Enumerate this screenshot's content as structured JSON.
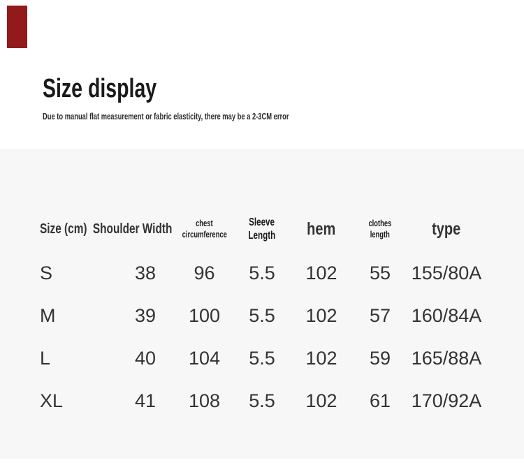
{
  "page": {
    "background_color": "#ffffff",
    "section_background_color": "#f7f7f7"
  },
  "accent_square": {
    "color": "#931a1a"
  },
  "intro": {
    "title": "Size display",
    "subtitle": "Due to manual flat measurement or fabric elasticity, there may be a 2-3CM error"
  },
  "size_table": {
    "headers": [
      {
        "lines": [
          "Size (cm)"
        ]
      },
      {
        "lines": [
          "Shoulder Width"
        ]
      },
      {
        "lines": [
          "chest",
          "circumference"
        ]
      },
      {
        "lines": [
          "Sleeve",
          "Length"
        ]
      },
      {
        "lines": [
          "hem"
        ]
      },
      {
        "lines": [
          "clothes",
          "length"
        ]
      },
      {
        "lines": [
          "type"
        ]
      }
    ],
    "rows": [
      [
        "S",
        "38",
        "96",
        "5.5",
        "102",
        "55",
        "155/80A"
      ],
      [
        "M",
        "39",
        "100",
        "5.5",
        "102",
        "57",
        "160/84A"
      ],
      [
        "L",
        "40",
        "104",
        "5.5",
        "102",
        "59",
        "165/88A"
      ],
      [
        "XL",
        "41",
        "108",
        "5.5",
        "102",
        "61",
        "170/92A"
      ]
    ]
  }
}
